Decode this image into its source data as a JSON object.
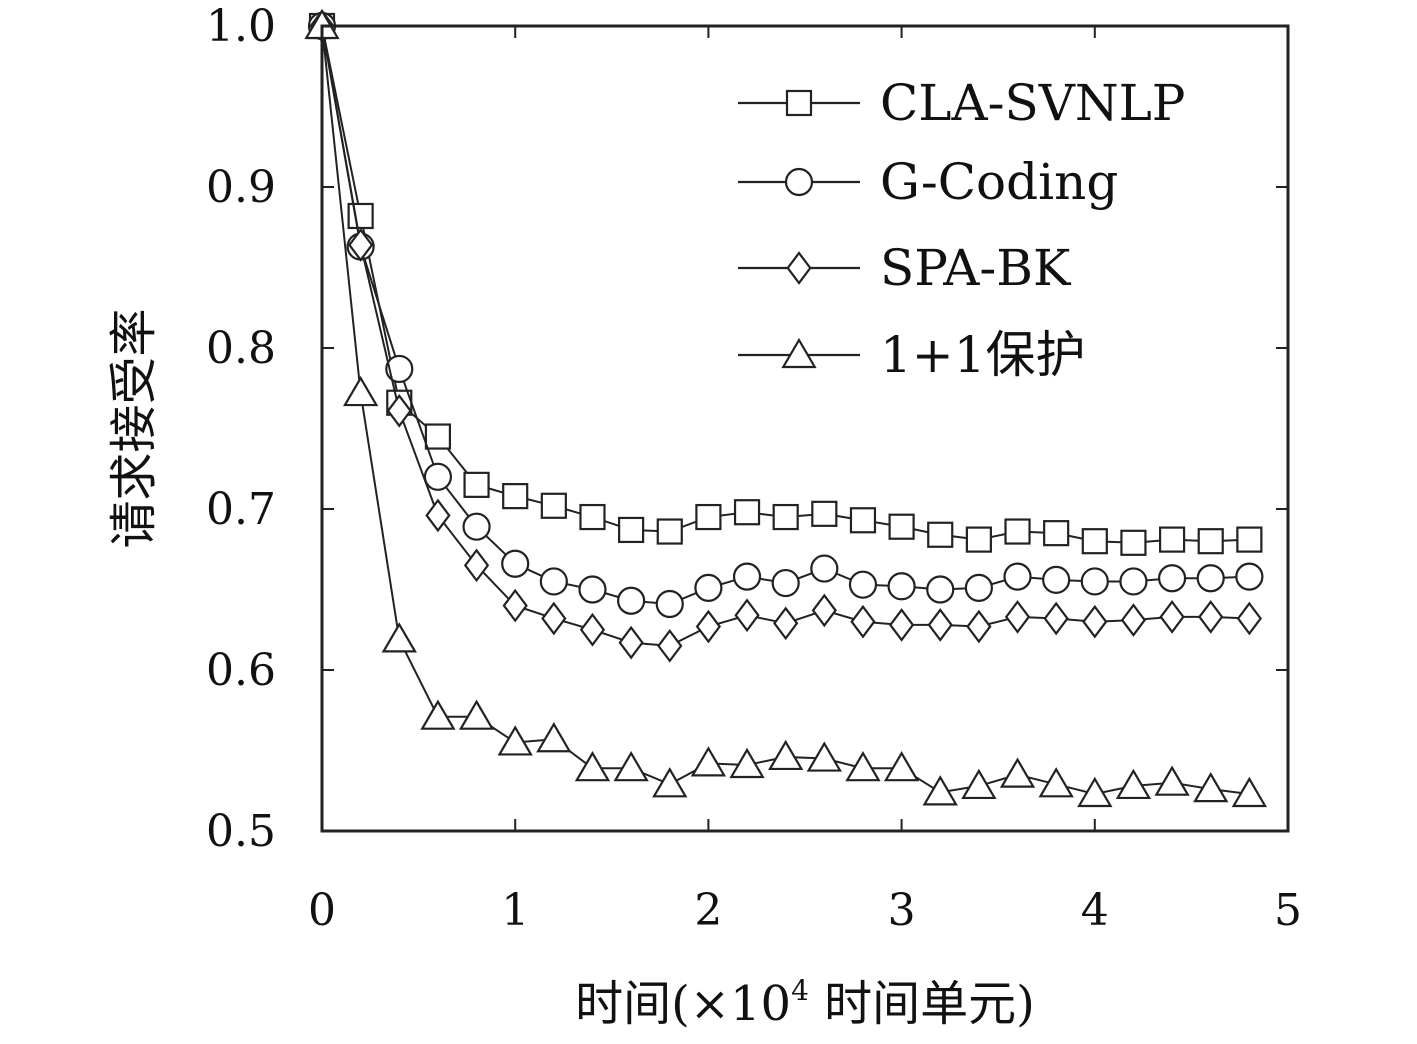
{
  "chart_data": {
    "type": "line",
    "xlabel": {
      "prefix": "时间(×10",
      "sup": "4",
      "suffix": " 时间单元)"
    },
    "ylabel": "请求接受率",
    "xlim": [
      0,
      5
    ],
    "ylim": [
      0.5,
      1.0
    ],
    "x_ticks": [
      "0",
      "1",
      "2",
      "3",
      "4",
      "5"
    ],
    "y_ticks": [
      "0.5",
      "0.6",
      "0.7",
      "0.8",
      "0.9",
      "1.0"
    ],
    "grid": false,
    "legend_position": "top-right",
    "x": [
      0,
      0.2,
      0.4,
      0.6,
      0.8,
      1.0,
      1.2,
      1.4,
      1.6,
      1.8,
      2.0,
      2.2,
      2.4,
      2.6,
      2.8,
      3.0,
      3.2,
      3.4,
      3.6,
      3.8,
      4.0,
      4.2,
      4.4,
      4.6,
      4.8
    ],
    "series": [
      {
        "name": "CLA-SVNLP",
        "marker": "square",
        "values": [
          1.0,
          0.882,
          0.766,
          0.745,
          0.715,
          0.708,
          0.702,
          0.695,
          0.687,
          0.686,
          0.695,
          0.698,
          0.695,
          0.697,
          0.693,
          0.689,
          0.684,
          0.681,
          0.686,
          0.685,
          0.68,
          0.679,
          0.681,
          0.68,
          0.681
        ]
      },
      {
        "name": "G-Coding",
        "marker": "circle",
        "values": [
          1.0,
          0.863,
          0.787,
          0.72,
          0.689,
          0.666,
          0.655,
          0.65,
          0.643,
          0.641,
          0.651,
          0.658,
          0.654,
          0.663,
          0.653,
          0.652,
          0.65,
          0.651,
          0.658,
          0.656,
          0.655,
          0.655,
          0.657,
          0.657,
          0.658
        ]
      },
      {
        "name": "SPA-BK",
        "marker": "diamond",
        "values": [
          1.0,
          0.864,
          0.761,
          0.696,
          0.665,
          0.64,
          0.632,
          0.625,
          0.617,
          0.615,
          0.627,
          0.634,
          0.629,
          0.637,
          0.63,
          0.628,
          0.628,
          0.627,
          0.633,
          0.632,
          0.63,
          0.631,
          0.633,
          0.633,
          0.632
        ]
      },
      {
        "name": "1+1保护",
        "marker": "triangle",
        "values": [
          1.0,
          0.772,
          0.619,
          0.571,
          0.571,
          0.555,
          0.557,
          0.539,
          0.539,
          0.529,
          0.542,
          0.541,
          0.546,
          0.545,
          0.539,
          0.539,
          0.524,
          0.528,
          0.535,
          0.529,
          0.523,
          0.528,
          0.53,
          0.526,
          0.523
        ]
      }
    ]
  }
}
